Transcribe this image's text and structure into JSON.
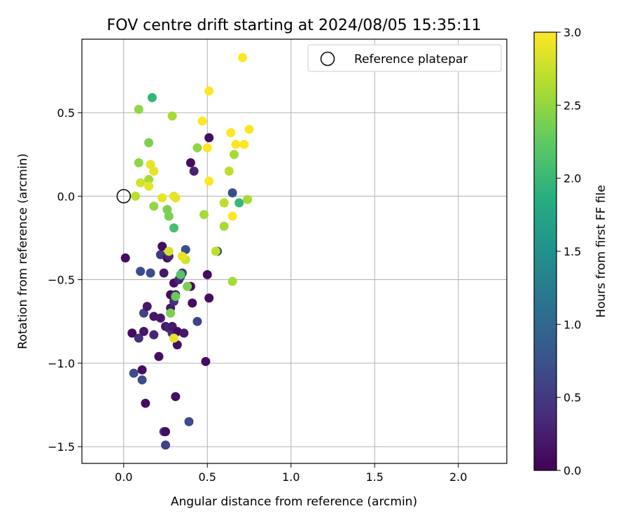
{
  "chart_data": {
    "type": "scatter",
    "title": "FOV centre drift starting at 2024/08/05 15:35:11",
    "xlabel": "Angular distance from reference (arcmin)",
    "ylabel": "Rotation from reference (arcmin)",
    "xlim": [
      -0.25,
      2.29
    ],
    "ylim": [
      -1.6,
      0.94
    ],
    "x_ticks": [
      0.0,
      0.5,
      1.0,
      1.5,
      2.0
    ],
    "x_tick_labels": [
      "0.0",
      "0.5",
      "1.0",
      "1.5",
      "2.0"
    ],
    "y_ticks": [
      0.5,
      0.0,
      -0.5,
      -1.0,
      -1.5
    ],
    "y_tick_labels": [
      "0.5",
      "0.0",
      "−0.5",
      "−1.0",
      "−1.5"
    ],
    "grid": true,
    "legend": {
      "placement": "top-right",
      "entries": [
        "Reference platepar"
      ]
    },
    "reference_point": {
      "x": 0.0,
      "y": 0.0
    },
    "colorbar": {
      "label": "Hours from first FF file",
      "colormap": "viridis",
      "range": [
        0.0,
        3.0
      ],
      "ticks": [
        0.0,
        0.5,
        1.0,
        1.5,
        2.0,
        2.5,
        3.0
      ],
      "tick_labels": [
        "0.0",
        "0.5",
        "1.0",
        "1.5",
        "2.0",
        "2.5",
        "3.0"
      ]
    },
    "points": [
      [
        0.01,
        -0.37,
        0.1
      ],
      [
        0.05,
        -0.82,
        0.1
      ],
      [
        0.06,
        -1.06,
        0.7
      ],
      [
        0.09,
        -0.85,
        0.4
      ],
      [
        0.1,
        -0.45,
        0.7
      ],
      [
        0.11,
        -1.04,
        0.1
      ],
      [
        0.11,
        -1.1,
        0.7
      ],
      [
        0.12,
        -0.81,
        0.2
      ],
      [
        0.12,
        -0.7,
        0.6
      ],
      [
        0.13,
        -1.24,
        0.1
      ],
      [
        0.14,
        -0.66,
        0.2
      ],
      [
        0.16,
        -0.46,
        0.7
      ],
      [
        0.18,
        -0.83,
        0.3
      ],
      [
        0.18,
        -0.72,
        0.2
      ],
      [
        0.21,
        -0.96,
        0.1
      ],
      [
        0.22,
        -0.73,
        0.2
      ],
      [
        0.22,
        -0.35,
        0.5
      ],
      [
        0.23,
        -0.3,
        0.1
      ],
      [
        0.24,
        -0.46,
        0.2
      ],
      [
        0.24,
        -1.41,
        0.6
      ],
      [
        0.25,
        -1.49,
        0.6
      ],
      [
        0.25,
        -0.78,
        0.2
      ],
      [
        0.25,
        -1.41,
        0.1
      ],
      [
        0.26,
        -0.37,
        0.1
      ],
      [
        0.27,
        -0.36,
        0.3
      ],
      [
        0.27,
        -0.79,
        0.3
      ],
      [
        0.28,
        -0.67,
        0.2
      ],
      [
        0.28,
        -0.59,
        0.1
      ],
      [
        0.29,
        -0.82,
        0.4
      ],
      [
        0.29,
        -0.78,
        0.2
      ],
      [
        0.3,
        -0.63,
        0.4
      ],
      [
        0.3,
        -0.52,
        0.1
      ],
      [
        0.31,
        -1.2,
        0.1
      ],
      [
        0.31,
        -0.59,
        0.2
      ],
      [
        0.32,
        -0.81,
        0.1
      ],
      [
        0.32,
        -0.89,
        0.1
      ],
      [
        0.33,
        -0.5,
        0.3
      ],
      [
        0.34,
        -0.48,
        0.4
      ],
      [
        0.35,
        -0.46,
        0.5
      ],
      [
        0.36,
        -0.82,
        0.2
      ],
      [
        0.37,
        -0.32,
        0.7
      ],
      [
        0.39,
        -1.35,
        0.7
      ],
      [
        0.4,
        -0.54,
        0.1
      ],
      [
        0.4,
        0.2,
        0.1
      ],
      [
        0.41,
        -0.64,
        0.1
      ],
      [
        0.42,
        0.15,
        0.3
      ],
      [
        0.44,
        -0.75,
        0.6
      ],
      [
        0.49,
        -0.99,
        0.1
      ],
      [
        0.5,
        -0.47,
        0.1
      ],
      [
        0.51,
        -0.61,
        0.1
      ],
      [
        0.51,
        0.35,
        0.1
      ],
      [
        0.56,
        -0.33,
        0.7
      ],
      [
        0.65,
        0.02,
        0.7
      ],
      [
        0.69,
        -0.04,
        2.0
      ],
      [
        0.17,
        0.59,
        2.0
      ],
      [
        0.3,
        -0.19,
        2.1
      ],
      [
        0.34,
        -0.47,
        2.2
      ],
      [
        0.31,
        -0.6,
        2.3
      ],
      [
        0.28,
        -0.7,
        2.4
      ],
      [
        0.38,
        -0.54,
        2.4
      ],
      [
        0.26,
        -0.08,
        2.4
      ],
      [
        0.27,
        -0.12,
        2.4
      ],
      [
        0.15,
        0.32,
        2.4
      ],
      [
        0.09,
        0.52,
        2.5
      ],
      [
        0.09,
        0.2,
        2.5
      ],
      [
        0.18,
        -0.06,
        2.5
      ],
      [
        0.15,
        0.1,
        2.6
      ],
      [
        0.29,
        0.48,
        2.6
      ],
      [
        0.44,
        0.29,
        2.5
      ],
      [
        0.48,
        -0.11,
        2.6
      ],
      [
        0.66,
        0.25,
        2.6
      ],
      [
        0.63,
        0.15,
        2.7
      ],
      [
        0.6,
        -0.18,
        2.6
      ],
      [
        0.6,
        -0.04,
        2.7
      ],
      [
        0.65,
        -0.51,
        2.6
      ],
      [
        0.74,
        -0.02,
        2.6
      ],
      [
        0.55,
        -0.33,
        2.7
      ],
      [
        0.37,
        -0.38,
        2.8
      ],
      [
        0.27,
        -0.33,
        2.8
      ],
      [
        0.3,
        -0.85,
        2.9
      ],
      [
        0.07,
        0.0,
        2.7
      ],
      [
        0.1,
        0.08,
        2.8
      ],
      [
        0.15,
        0.06,
        2.9
      ],
      [
        0.16,
        0.19,
        2.9
      ],
      [
        0.18,
        0.15,
        2.9
      ],
      [
        0.23,
        -0.01,
        2.9
      ],
      [
        0.3,
        0.0,
        2.9
      ],
      [
        0.31,
        -0.01,
        2.9
      ],
      [
        0.35,
        -0.36,
        2.9
      ],
      [
        0.47,
        0.45,
        3.0
      ],
      [
        0.5,
        0.29,
        3.0
      ],
      [
        0.51,
        0.09,
        3.0
      ],
      [
        0.51,
        0.63,
        3.0
      ],
      [
        0.64,
        0.38,
        3.0
      ],
      [
        0.65,
        -0.12,
        3.0
      ],
      [
        0.67,
        0.31,
        3.0
      ],
      [
        0.71,
        0.83,
        3.0
      ],
      [
        0.72,
        0.31,
        3.0
      ],
      [
        0.75,
        0.4,
        3.0
      ]
    ]
  }
}
